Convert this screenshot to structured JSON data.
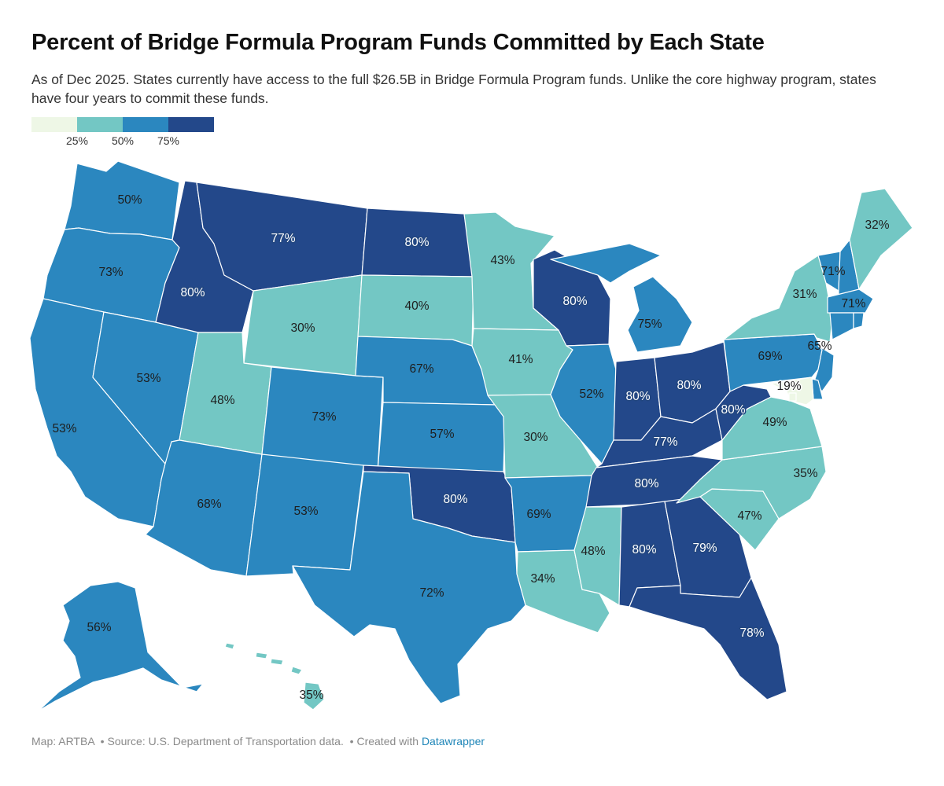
{
  "title": "Percent of Bridge Formula Program Funds Committed by Each State",
  "subtitle": "As of Dec 2025. States currently have access to the full $26.5B in Bridge Formula Program funds. Unlike the core highway program, states have four years to commit these funds.",
  "legend": {
    "colors": [
      "#eef7e6",
      "#73c7c4",
      "#2b87bf",
      "#23488a"
    ],
    "ticks": [
      "25%",
      "50%",
      "75%"
    ]
  },
  "footer": {
    "map_credit": "Map: ARTBA",
    "source": "Source: U.S. Department of Transportation data.",
    "created_with": "Created with",
    "tool": "Datawrapper"
  },
  "states": [
    {
      "id": "WA",
      "label": "50%",
      "color": "#2b87bf"
    },
    {
      "id": "OR",
      "label": "73%",
      "color": "#2b87bf"
    },
    {
      "id": "CA",
      "label": "53%",
      "color": "#2b87bf"
    },
    {
      "id": "NV",
      "label": "53%",
      "color": "#2b87bf"
    },
    {
      "id": "ID",
      "label": "80%",
      "color": "#23488a"
    },
    {
      "id": "MT",
      "label": "77%",
      "color": "#23488a"
    },
    {
      "id": "WY",
      "label": "30%",
      "color": "#73c7c4"
    },
    {
      "id": "UT",
      "label": "48%",
      "color": "#73c7c4"
    },
    {
      "id": "AZ",
      "label": "68%",
      "color": "#2b87bf"
    },
    {
      "id": "CO",
      "label": "73%",
      "color": "#2b87bf"
    },
    {
      "id": "NM",
      "label": "53%",
      "color": "#2b87bf"
    },
    {
      "id": "ND",
      "label": "80%",
      "color": "#23488a"
    },
    {
      "id": "SD",
      "label": "40%",
      "color": "#73c7c4"
    },
    {
      "id": "NE",
      "label": "67%",
      "color": "#2b87bf"
    },
    {
      "id": "KS",
      "label": "57%",
      "color": "#2b87bf"
    },
    {
      "id": "OK",
      "label": "80%",
      "color": "#23488a"
    },
    {
      "id": "TX",
      "label": "72%",
      "color": "#2b87bf"
    },
    {
      "id": "MN",
      "label": "43%",
      "color": "#73c7c4"
    },
    {
      "id": "IA",
      "label": "41%",
      "color": "#73c7c4"
    },
    {
      "id": "MO",
      "label": "30%",
      "color": "#73c7c4"
    },
    {
      "id": "AR",
      "label": "69%",
      "color": "#2b87bf"
    },
    {
      "id": "LA",
      "label": "34%",
      "color": "#73c7c4"
    },
    {
      "id": "WI",
      "label": "80%",
      "color": "#23488a"
    },
    {
      "id": "IL",
      "label": "52%",
      "color": "#2b87bf"
    },
    {
      "id": "MI",
      "label": "75%",
      "color": "#2b87bf"
    },
    {
      "id": "IN",
      "label": "80%",
      "color": "#23488a"
    },
    {
      "id": "OH",
      "label": "80%",
      "color": "#23488a"
    },
    {
      "id": "KY",
      "label": "77%",
      "color": "#23488a"
    },
    {
      "id": "TN",
      "label": "80%",
      "color": "#23488a"
    },
    {
      "id": "MS",
      "label": "48%",
      "color": "#73c7c4"
    },
    {
      "id": "AL",
      "label": "80%",
      "color": "#23488a"
    },
    {
      "id": "GA",
      "label": "79%",
      "color": "#23488a"
    },
    {
      "id": "FL",
      "label": "78%",
      "color": "#23488a"
    },
    {
      "id": "SC",
      "label": "47%",
      "color": "#73c7c4"
    },
    {
      "id": "NC",
      "label": "35%",
      "color": "#73c7c4"
    },
    {
      "id": "VA",
      "label": "49%",
      "color": "#73c7c4"
    },
    {
      "id": "WV",
      "label": "80%",
      "color": "#23488a"
    },
    {
      "id": "PA",
      "label": "69%",
      "color": "#2b87bf"
    },
    {
      "id": "NY",
      "label": "31%",
      "color": "#73c7c4"
    },
    {
      "id": "VT",
      "label": "71%",
      "color": "#2b87bf"
    },
    {
      "id": "NH",
      "label": "",
      "color": "#2b87bf"
    },
    {
      "id": "ME",
      "label": "32%",
      "color": "#73c7c4"
    },
    {
      "id": "MA",
      "label": "71%",
      "color": "#2b87bf"
    },
    {
      "id": "CT",
      "label": "",
      "color": "#2b87bf"
    },
    {
      "id": "RI",
      "label": "",
      "color": "#2b87bf"
    },
    {
      "id": "NJ",
      "label": "65%",
      "color": "#2b87bf"
    },
    {
      "id": "DE",
      "label": "",
      "color": "#2b87bf"
    },
    {
      "id": "MD",
      "label": "19%",
      "color": "#eef7e6"
    },
    {
      "id": "DC",
      "label": "",
      "color": "#eef7e6"
    },
    {
      "id": "AK",
      "label": "56%",
      "color": "#2b87bf"
    },
    {
      "id": "HI",
      "label": "35%",
      "color": "#73c7c4"
    }
  ]
}
